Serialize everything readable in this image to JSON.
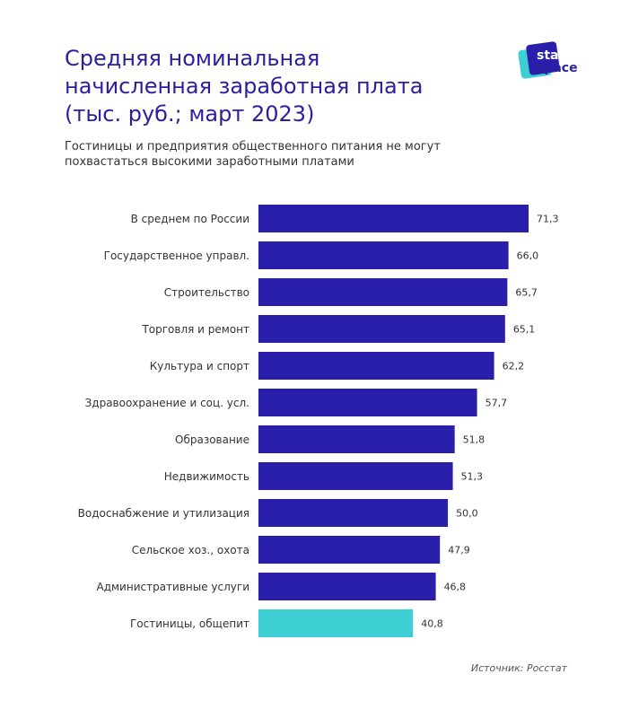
{
  "title": [
    "Средняя номинальная",
    "начисленная заработная плата",
    "(тыс. руб.; март 2023)"
  ],
  "subtitle": [
    "Гостиницы и предприятия общественного питания не могут",
    "похвастаться высокими заработными платами"
  ],
  "source": "Источник: Росстат",
  "logo": {
    "text_top": "stat",
    "text_bottom": "space"
  },
  "colors": {
    "bar": "#2a1faa",
    "highlight": "#3ecfd4",
    "title": "#2a1f9e"
  },
  "chart_data": {
    "type": "bar",
    "orientation": "horizontal",
    "categories": [
      "В среднем по России",
      "Государственное управл.",
      "Строительство",
      "Торговля и ремонт",
      "Культура и спорт",
      "Здравоохранение и соц. усл.",
      "Образование",
      "Недвижимость",
      "Водоснабжение и утилизация",
      "Сельское хоз., охота",
      "Административные услуги",
      "Гостиницы, общепит"
    ],
    "values": [
      71.3,
      66.0,
      65.7,
      65.1,
      62.2,
      57.7,
      51.8,
      51.3,
      50.0,
      47.9,
      46.8,
      40.8
    ],
    "labels": [
      "71,3",
      "66,0",
      "65,7",
      "65,1",
      "62,2",
      "57,7",
      "51,8",
      "51,3",
      "50,0",
      "47,9",
      "46,8",
      "40,8"
    ],
    "highlighted": [
      "Гостиницы, общепит"
    ],
    "xlim": [
      0,
      71.3
    ],
    "grid": false,
    "legend": "none"
  }
}
